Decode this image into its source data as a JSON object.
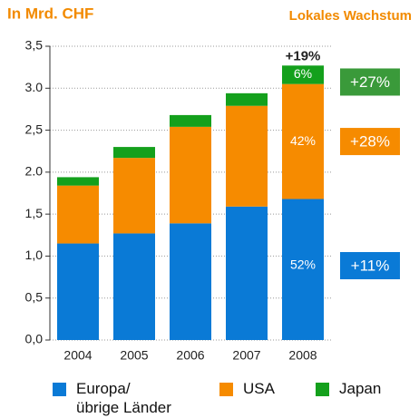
{
  "chart_data": {
    "type": "stacked_bar",
    "title": "In Mrd. CHF",
    "subtitle": "Lokales Wachstum",
    "categories": [
      "2004",
      "2005",
      "2006",
      "2007",
      "2008"
    ],
    "series": [
      {
        "name": "Europa/\nübrige Länder",
        "color": "#0a7ad6",
        "values": [
          1.15,
          1.27,
          1.39,
          1.59,
          1.68
        ]
      },
      {
        "name": "USA",
        "color": "#f68b00",
        "values": [
          0.69,
          0.9,
          1.15,
          1.2,
          1.37
        ]
      },
      {
        "name": "Japan",
        "color": "#14a01c",
        "values": [
          0.1,
          0.13,
          0.14,
          0.15,
          0.22
        ]
      }
    ],
    "ylim": [
      0,
      3.5
    ],
    "yticks": [
      {
        "value": 0,
        "label": "0,0"
      },
      {
        "value": 0.5,
        "label": "0,5"
      },
      {
        "value": 1,
        "label": "1,0"
      },
      {
        "value": 1.5,
        "label": "1,5"
      },
      {
        "value": 2,
        "label": "2.0"
      },
      {
        "value": 2.5,
        "label": "2,5"
      },
      {
        "value": 3,
        "label": "3.0"
      },
      {
        "value": 3.5,
        "label": "3,5"
      }
    ],
    "grid": true,
    "annotations": {
      "total": "+19%",
      "shares": [
        "52%",
        "42%",
        "6%"
      ],
      "growth": [
        "+11%",
        "+28%",
        "+27%"
      ]
    }
  }
}
